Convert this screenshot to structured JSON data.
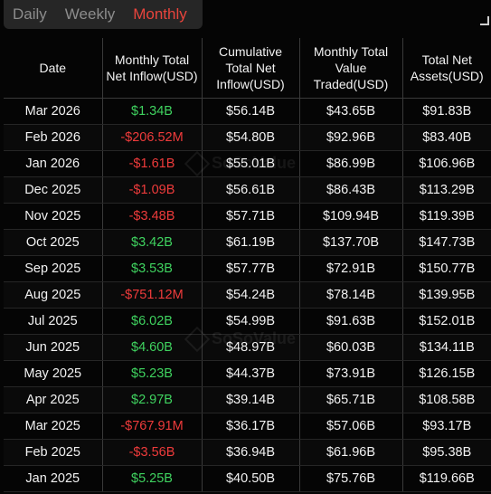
{
  "tabs": [
    {
      "label": "Daily",
      "active": false
    },
    {
      "label": "Weekly",
      "active": false
    },
    {
      "label": "Monthly",
      "active": true
    }
  ],
  "watermark": "SoSoValue",
  "colors": {
    "active_tab": "#e8443c",
    "positive": "#3fd25f",
    "negative": "#ee3b3b"
  },
  "table": {
    "columns": [
      "Date",
      "Monthly Total Net Inflow(USD)",
      "Cumulative Total Net Inflow(USD)",
      "Monthly Total Value Traded(USD)",
      "Total Net Assets(USD)"
    ],
    "rows": [
      {
        "date": "Mar 2026",
        "net_inflow": "$1.34B",
        "cumulative": "$56.14B",
        "value_traded": "$43.65B",
        "net_assets": "$91.83B"
      },
      {
        "date": "Feb 2026",
        "net_inflow": "-$206.52M",
        "cumulative": "$54.80B",
        "value_traded": "$92.96B",
        "net_assets": "$83.40B"
      },
      {
        "date": "Jan 2026",
        "net_inflow": "-$1.61B",
        "cumulative": "$55.01B",
        "value_traded": "$86.99B",
        "net_assets": "$106.96B"
      },
      {
        "date": "Dec 2025",
        "net_inflow": "-$1.09B",
        "cumulative": "$56.61B",
        "value_traded": "$86.43B",
        "net_assets": "$113.29B"
      },
      {
        "date": "Nov 2025",
        "net_inflow": "-$3.48B",
        "cumulative": "$57.71B",
        "value_traded": "$109.94B",
        "net_assets": "$119.39B"
      },
      {
        "date": "Oct 2025",
        "net_inflow": "$3.42B",
        "cumulative": "$61.19B",
        "value_traded": "$137.70B",
        "net_assets": "$147.73B"
      },
      {
        "date": "Sep 2025",
        "net_inflow": "$3.53B",
        "cumulative": "$57.77B",
        "value_traded": "$72.91B",
        "net_assets": "$150.77B"
      },
      {
        "date": "Aug 2025",
        "net_inflow": "-$751.12M",
        "cumulative": "$54.24B",
        "value_traded": "$78.14B",
        "net_assets": "$139.95B"
      },
      {
        "date": "Jul 2025",
        "net_inflow": "$6.02B",
        "cumulative": "$54.99B",
        "value_traded": "$91.63B",
        "net_assets": "$152.01B"
      },
      {
        "date": "Jun 2025",
        "net_inflow": "$4.60B",
        "cumulative": "$48.97B",
        "value_traded": "$60.03B",
        "net_assets": "$134.11B"
      },
      {
        "date": "May 2025",
        "net_inflow": "$5.23B",
        "cumulative": "$44.37B",
        "value_traded": "$73.91B",
        "net_assets": "$126.15B"
      },
      {
        "date": "Apr 2025",
        "net_inflow": "$2.97B",
        "cumulative": "$39.14B",
        "value_traded": "$65.71B",
        "net_assets": "$108.58B"
      },
      {
        "date": "Mar 2025",
        "net_inflow": "-$767.91M",
        "cumulative": "$36.17B",
        "value_traded": "$57.06B",
        "net_assets": "$93.17B"
      },
      {
        "date": "Feb 2025",
        "net_inflow": "-$3.56B",
        "cumulative": "$36.94B",
        "value_traded": "$61.96B",
        "net_assets": "$95.38B"
      },
      {
        "date": "Jan 2025",
        "net_inflow": "$5.25B",
        "cumulative": "$40.50B",
        "value_traded": "$75.76B",
        "net_assets": "$119.66B"
      }
    ]
  }
}
